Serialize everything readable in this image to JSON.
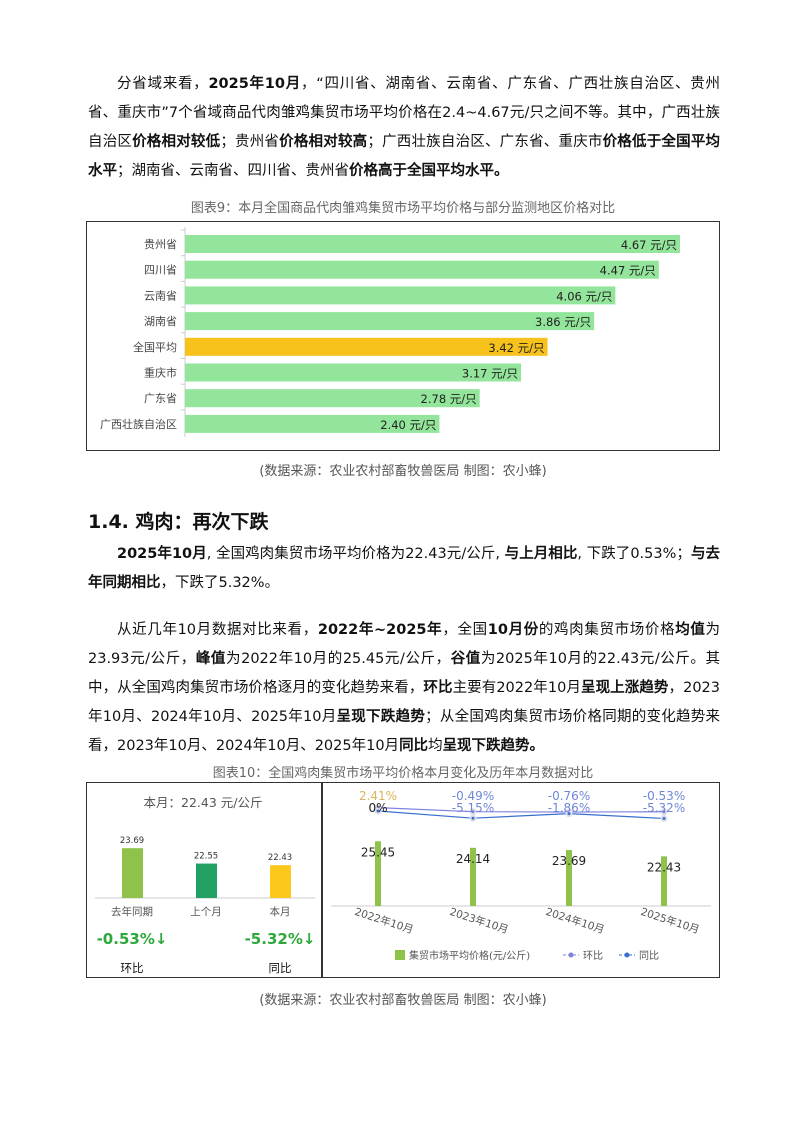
{
  "paragraphs": [
    [
      {
        "t": "分省域来看，"
      },
      {
        "t": "2025年10月",
        "b": 1
      },
      {
        "t": "，“四川省、湖南省、云南省、广东省、广西壮族自治区、贵州省、重庆市”7个省域商品代肉雏鸡集贸市场平均价格在2.4~4.67元/只之间不等。其中，广西壮族自治区"
      },
      {
        "t": "价格相对较低",
        "b": 1
      },
      {
        "t": "；贵州省"
      },
      {
        "t": "价格相对较高",
        "b": 1
      },
      {
        "t": "；广西壮族自治区、广东省、重庆市"
      },
      {
        "t": "价格低于全国平均水平",
        "b": 1
      },
      {
        "t": "；湖南省、云南省、四川省、贵州省"
      },
      {
        "t": "价格高于全国平均水平。",
        "b": 1
      }
    ],
    [
      {
        "t": "2025年10月",
        "b": 1
      },
      {
        "t": ", 全国鸡肉集贸市场平均价格为22.43元/公斤, "
      },
      {
        "t": "与上月相比",
        "b": 1
      },
      {
        "t": ", 下跌了0.53%；"
      },
      {
        "t": "与去年同期相比",
        "b": 1
      },
      {
        "t": "，下跌了5.32%。"
      }
    ],
    [
      {
        "t": "从近几年10月数据对比来看，"
      },
      {
        "t": "2022年~2025年",
        "b": 1
      },
      {
        "t": "，全国"
      },
      {
        "t": "10月份",
        "b": 1
      },
      {
        "t": "的鸡肉集贸市场价格"
      },
      {
        "t": "均值",
        "b": 1
      },
      {
        "t": "为23.93元/公斤，"
      },
      {
        "t": "峰值",
        "b": 1
      },
      {
        "t": "为2022年10月的25.45元/公斤，"
      },
      {
        "t": "谷值",
        "b": 1
      },
      {
        "t": "为2025年10月的22.43元/公斤。其中，从全国鸡肉集贸市场价格逐月的变化趋势来看，"
      },
      {
        "t": "环比",
        "b": 1
      },
      {
        "t": "主要有2022年10月"
      },
      {
        "t": "呈现上涨趋势",
        "b": 1
      },
      {
        "t": "，2023年10月、2024年10月、2025年10月"
      },
      {
        "t": "呈现下跌趋势",
        "b": 1
      },
      {
        "t": "；从全国鸡肉集贸市场价格同期的变化趋势来看，2023年10月、2024年10月、2025年10月"
      },
      {
        "t": "同比",
        "b": 1
      },
      {
        "t": "均"
      },
      {
        "t": "呈现下跌趋势。",
        "b": 1
      }
    ]
  ],
  "heading": "1.4.  鸡肉：再次下跌",
  "source_text": "(数据来源：农业农村部畜牧兽医局      制图：农小蜂)",
  "chart_data": [
    {
      "type": "bar",
      "orientation": "horizontal",
      "title": "图表9：本月全国商品代肉雏鸡集贸市场平均价格与部分监测地区价格对比",
      "categories": [
        "贵州省",
        "四川省",
        "云南省",
        "湖南省",
        "全国平均",
        "重庆市",
        "广东省",
        "广西壮族自治区"
      ],
      "values": [
        4.67,
        4.47,
        4.06,
        3.86,
        3.42,
        3.17,
        2.78,
        2.4
      ],
      "unit": "元/只",
      "highlight": "全国平均",
      "colors": {
        "bar": "#92e59a",
        "highlight": "#f7c21c"
      }
    },
    {
      "type": "bar",
      "title": "图表10：全国鸡肉集贸市场平均价格本月变化及历年本月数据对比",
      "panel_title": "本月：22.43 元/公斤",
      "categories": [
        "去年同期",
        "上个月",
        "本月"
      ],
      "values": [
        23.69,
        22.55,
        22.43
      ],
      "colors": [
        "#8fc24a",
        "#22a063",
        "#fcc81c"
      ],
      "changes": [
        {
          "value": "-0.53%↓",
          "label": "环比"
        },
        {
          "value": "-5.32%↓",
          "label": "同比"
        }
      ]
    },
    {
      "type": "bar+line",
      "categories": [
        "2022年10月",
        "2023年10月",
        "2024年10月",
        "2025年10月"
      ],
      "series": [
        {
          "name": "集贸市场平均价格(元/公斤)",
          "type": "bar",
          "values": [
            25.45,
            24.14,
            23.69,
            22.43
          ],
          "color": "#8fc24a"
        },
        {
          "name": "环比",
          "type": "line",
          "values": [
            2.41,
            -0.49,
            -0.76,
            -0.53
          ],
          "labels": [
            "2.41%",
            "-0.49%",
            "-0.76%",
            "-0.53%"
          ],
          "color": "#8080e0"
        },
        {
          "name": "同比",
          "type": "line",
          "values": [
            0,
            -5.15,
            -1.86,
            -5.32
          ],
          "labels": [
            "0%",
            "-5.15%",
            "-1.86%",
            "-5.32%"
          ],
          "color": "#3a6fd0"
        }
      ]
    }
  ]
}
